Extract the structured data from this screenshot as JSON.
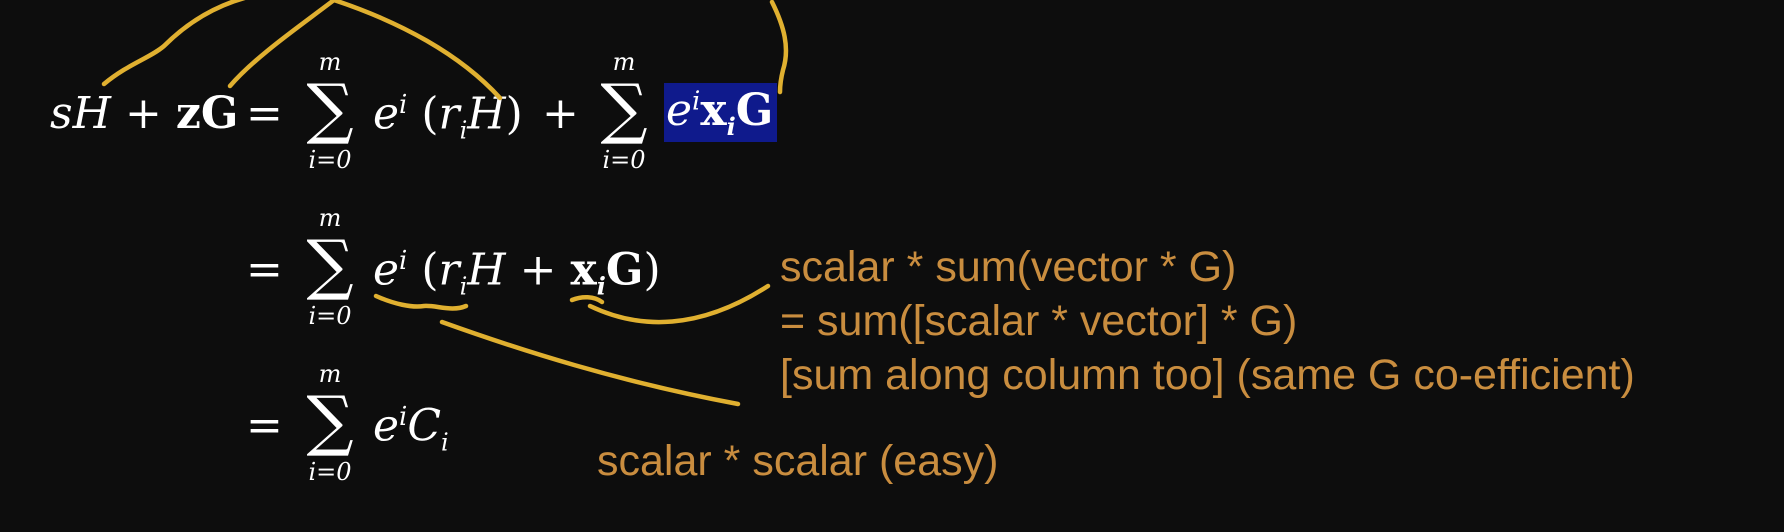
{
  "colors": {
    "background": "#0d0d0d",
    "math": "#ffffff",
    "annotation": "#c98d3f",
    "ink": "#e0b030",
    "highlight": "#0f1a8c"
  },
  "equation": {
    "line1": {
      "lhs": {
        "s": "s",
        "H": "H",
        "plus": "+",
        "z": "z",
        "G": "G"
      },
      "eq": "=",
      "sum1": {
        "upper": "m",
        "sigma": "∑",
        "lower": "i=0"
      },
      "term1": {
        "e": "e",
        "exp": "i",
        "lp": "(",
        "r": "r",
        "sub": "i",
        "H": "H",
        "rp": ")"
      },
      "plus": "+",
      "sum2": {
        "upper": "m",
        "sigma": "∑",
        "lower": "i=0"
      },
      "term2": {
        "e": "e",
        "exp": "i",
        "x": "x",
        "xsub": "i",
        "G": "G"
      }
    },
    "line2": {
      "eq": "=",
      "sum": {
        "upper": "m",
        "sigma": "∑",
        "lower": "i=0"
      },
      "term": {
        "e": "e",
        "exp": "i",
        "lp": "(",
        "r": "r",
        "sub": "i",
        "H": "H",
        "plus": "+",
        "x": "x",
        "xsub": "i",
        "G": "G",
        "rp": ")"
      }
    },
    "line3": {
      "eq": "=",
      "sum": {
        "upper": "m",
        "sigma": "∑",
        "lower": "i=0"
      },
      "term": {
        "e": "e",
        "exp": "i",
        "C": "C",
        "sub": "i"
      }
    }
  },
  "annotations": {
    "line1": "scalar * sum(vector * G)",
    "line2": "= sum([scalar * vector] * G)",
    "line3": "[sum along column too] (same G co-efficient)",
    "scalar_note": "scalar * scalar (easy)"
  }
}
